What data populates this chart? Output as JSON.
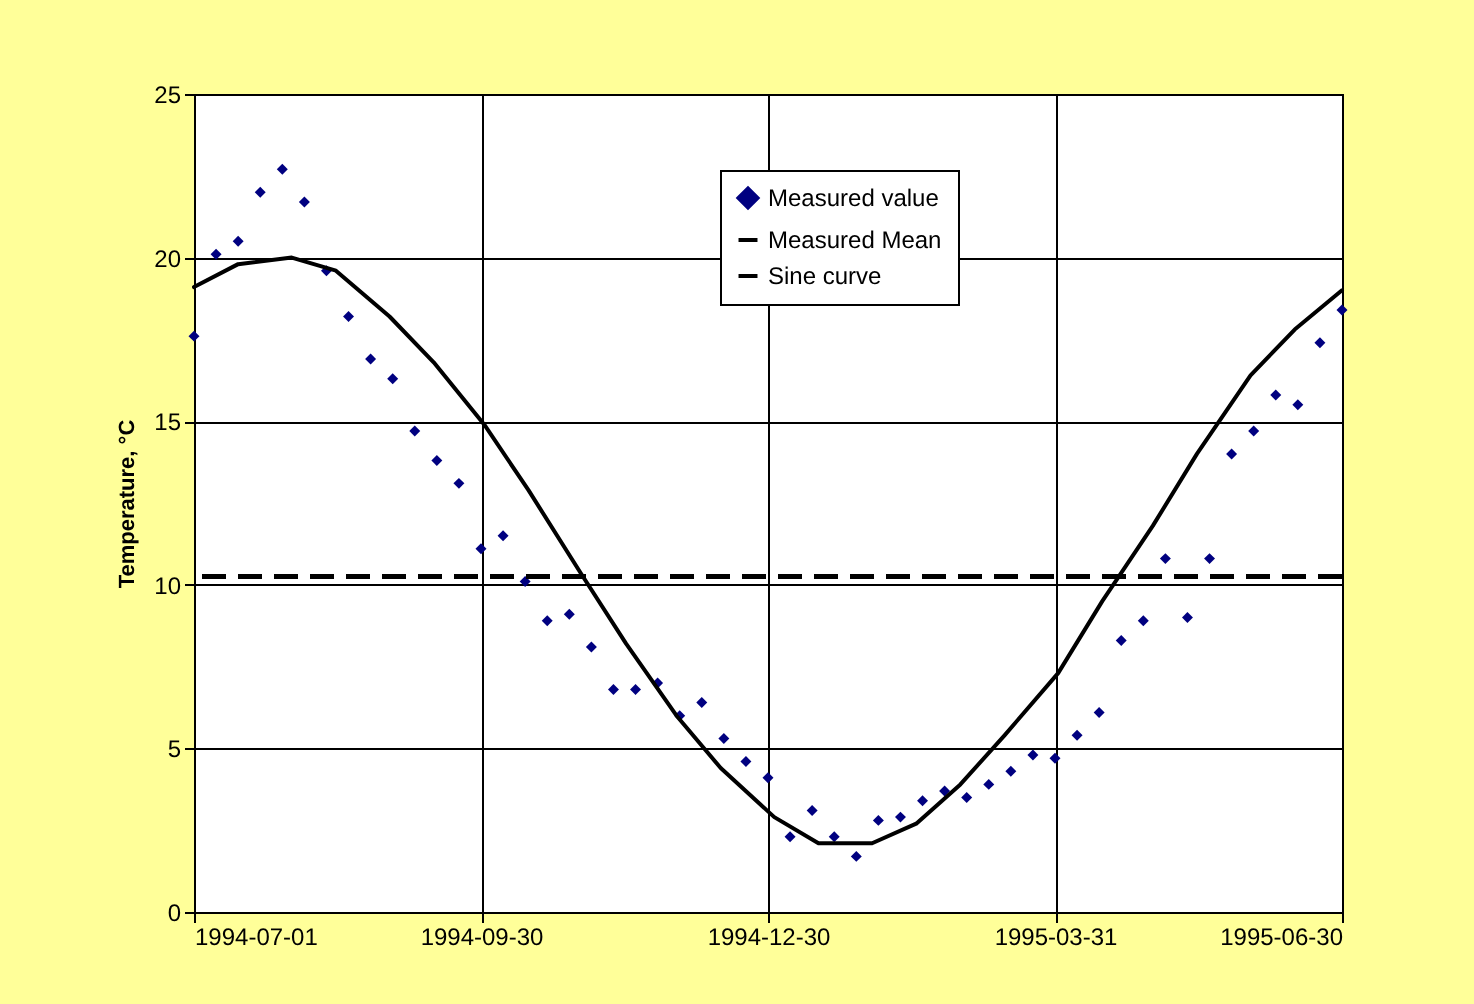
{
  "chart_data": {
    "type": "scatter",
    "ylabel": "Temperature, °C",
    "x": [
      "1994-07-01",
      "1994-07-08",
      "1994-07-15",
      "1994-07-22",
      "1994-07-29",
      "1994-08-05",
      "1994-08-12",
      "1994-08-19",
      "1994-08-26",
      "1994-09-02",
      "1994-09-09",
      "1994-09-16",
      "1994-09-23",
      "1994-09-30",
      "1994-10-07",
      "1994-10-14",
      "1994-10-21",
      "1994-10-28",
      "1994-11-04",
      "1994-11-11",
      "1994-11-18",
      "1994-11-25",
      "1994-12-02",
      "1994-12-09",
      "1994-12-16",
      "1994-12-23",
      "1994-12-30",
      "1995-01-06",
      "1995-01-13",
      "1995-01-20",
      "1995-01-27",
      "1995-02-03",
      "1995-02-10",
      "1995-02-17",
      "1995-02-24",
      "1995-03-03",
      "1995-03-10",
      "1995-03-17",
      "1995-03-24",
      "1995-03-31",
      "1995-04-07",
      "1995-04-14",
      "1995-04-21",
      "1995-04-28",
      "1995-05-05",
      "1995-05-12",
      "1995-05-19",
      "1995-05-26",
      "1995-06-02",
      "1995-06-09",
      "1995-06-16",
      "1995-06-23",
      "1995-06-30"
    ],
    "series": [
      {
        "name": "Measured value",
        "color": "#000080",
        "marker": "diamond",
        "values": [
          17.6,
          20.1,
          20.5,
          22.0,
          22.7,
          21.7,
          19.6,
          18.2,
          16.9,
          16.3,
          14.7,
          13.8,
          13.1,
          11.1,
          11.5,
          10.1,
          8.9,
          9.1,
          8.1,
          6.8,
          6.8,
          7.0,
          6.0,
          6.4,
          5.3,
          4.6,
          4.1,
          2.3,
          3.1,
          2.3,
          1.7,
          2.8,
          2.9,
          3.4,
          3.7,
          3.5,
          3.9,
          4.3,
          4.8,
          4.7,
          5.4,
          6.1,
          8.3,
          8.9,
          10.8,
          9.0,
          10.8,
          14.0,
          14.7,
          15.8,
          15.5,
          17.4,
          18.4
        ]
      },
      {
        "name": "Sine curve",
        "type": "line",
        "color": "#000000",
        "line_style": "solid",
        "x": [
          "1994-07-01",
          "1994-07-15",
          "1994-08-01",
          "1994-08-15",
          "1994-09-01",
          "1994-09-15",
          "1994-10-01",
          "1994-10-15",
          "1994-11-01",
          "1994-11-15",
          "1994-12-01",
          "1994-12-15",
          "1995-01-01",
          "1995-01-15",
          "1995-02-01",
          "1995-02-15",
          "1995-03-01",
          "1995-03-15",
          "1995-04-01",
          "1995-04-15",
          "1995-05-01",
          "1995-05-15",
          "1995-06-01",
          "1995-06-15",
          "1995-06-30"
        ],
        "values": [
          19.1,
          19.8,
          20.0,
          19.6,
          18.2,
          16.8,
          14.9,
          12.9,
          10.3,
          8.2,
          6.0,
          4.4,
          2.9,
          2.1,
          2.1,
          2.7,
          3.9,
          5.4,
          7.3,
          9.5,
          11.8,
          14.0,
          16.4,
          17.8,
          19.0
        ]
      }
    ],
    "ref_lines": [
      {
        "axis": "y",
        "value": 10.25,
        "label": "Measured Mean",
        "color": "#000000",
        "line_style": "dashed"
      }
    ],
    "xlim": [
      "1994-07-01",
      "1995-06-30"
    ],
    "xticks": [
      "1994-07-01",
      "1994-09-30",
      "1994-12-30",
      "1995-03-31",
      "1995-06-30"
    ],
    "ylim": [
      0,
      25
    ],
    "yticks": [
      0,
      5,
      10,
      15,
      20,
      25
    ],
    "grid": true,
    "legend": "top right"
  }
}
